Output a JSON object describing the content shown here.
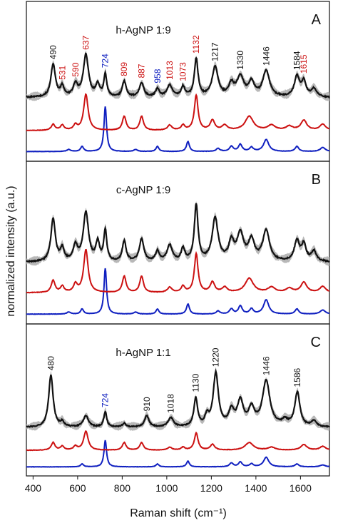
{
  "chart_data": {
    "type": "line",
    "ylabel": "normalized intensity (a.u.)",
    "xlabel": "Raman shift (cm⁻¹)",
    "xlim": [
      370,
      1730
    ],
    "x_ticks": [
      400,
      600,
      800,
      1000,
      1200,
      1400,
      1600
    ],
    "x_tick_labels": [
      "400",
      "600",
      "800",
      "1000",
      "1200",
      "1400",
      "1600"
    ],
    "colors": {
      "black": "#111111",
      "red": "#cc1111",
      "blue": "#1020c0",
      "band": "#b8b8b8"
    },
    "panels": [
      {
        "letter": "A",
        "title": "h-AgNP 1:9",
        "annotations": [
          {
            "x": 490,
            "text": "490",
            "color": "#111111"
          },
          {
            "x": 531,
            "text": "531",
            "color": "#cc1111"
          },
          {
            "x": 590,
            "text": "590",
            "color": "#cc1111"
          },
          {
            "x": 637,
            "text": "637",
            "color": "#cc1111"
          },
          {
            "x": 724,
            "text": "724",
            "color": "#1020c0"
          },
          {
            "x": 809,
            "text": "809",
            "color": "#cc1111"
          },
          {
            "x": 887,
            "text": "887",
            "color": "#cc1111"
          },
          {
            "x": 958,
            "text": "958",
            "color": "#1020c0"
          },
          {
            "x": 1013,
            "text": "1013",
            "color": "#cc1111"
          },
          {
            "x": 1073,
            "text": "1073",
            "color": "#cc1111"
          },
          {
            "x": 1132,
            "text": "1132",
            "color": "#cc1111"
          },
          {
            "x": 1217,
            "text": "1217",
            "color": "#111111"
          },
          {
            "x": 1330,
            "text": "1330",
            "color": "#111111"
          },
          {
            "x": 1446,
            "text": "1446",
            "color": "#111111"
          },
          {
            "x": 1584,
            "text": "1584",
            "color": "#111111"
          },
          {
            "x": 1615,
            "text": "1615",
            "color": "#cc1111"
          }
        ],
        "series": [
          {
            "color": "#111111",
            "band": true,
            "baseline": 0.58,
            "slope": 0.0,
            "noise": 0.012,
            "peaks": [
              [
                490,
                0.33,
                12
              ],
              [
                531,
                0.1,
                10
              ],
              [
                590,
                0.12,
                12
              ],
              [
                637,
                0.42,
                14
              ],
              [
                690,
                0.12,
                10
              ],
              [
                724,
                0.22,
                8
              ],
              [
                809,
                0.16,
                10
              ],
              [
                887,
                0.14,
                12
              ],
              [
                958,
                0.08,
                10
              ],
              [
                1013,
                0.12,
                14
              ],
              [
                1073,
                0.1,
                10
              ],
              [
                1132,
                0.38,
                10
              ],
              [
                1217,
                0.3,
                16
              ],
              [
                1290,
                0.12,
                14
              ],
              [
                1330,
                0.2,
                18
              ],
              [
                1380,
                0.14,
                16
              ],
              [
                1446,
                0.26,
                18
              ],
              [
                1584,
                0.2,
                14
              ],
              [
                1615,
                0.15,
                12
              ],
              [
                1660,
                0.08,
                14
              ]
            ]
          },
          {
            "color": "#cc1111",
            "band": false,
            "baseline": 0.25,
            "slope": 0.0,
            "noise": 0.004,
            "peaks": [
              [
                490,
                0.06,
                10
              ],
              [
                531,
                0.05,
                10
              ],
              [
                590,
                0.05,
                10
              ],
              [
                637,
                0.36,
                12
              ],
              [
                809,
                0.14,
                10
              ],
              [
                887,
                0.14,
                10
              ],
              [
                1013,
                0.05,
                12
              ],
              [
                1073,
                0.05,
                10
              ],
              [
                1132,
                0.35,
                10
              ],
              [
                1205,
                0.1,
                12
              ],
              [
                1260,
                0.05,
                14
              ],
              [
                1370,
                0.14,
                22
              ],
              [
                1470,
                0.05,
                20
              ],
              [
                1550,
                0.04,
                18
              ],
              [
                1615,
                0.1,
                16
              ],
              [
                1700,
                0.06,
                16
              ]
            ]
          },
          {
            "color": "#1020c0",
            "band": false,
            "baseline": 0.04,
            "slope": 0.0,
            "noise": 0.003,
            "peaks": [
              [
                560,
                0.02,
                10
              ],
              [
                620,
                0.05,
                8
              ],
              [
                724,
                0.45,
                7
              ],
              [
                860,
                0.02,
                10
              ],
              [
                958,
                0.05,
                8
              ],
              [
                1095,
                0.1,
                8
              ],
              [
                1230,
                0.03,
                10
              ],
              [
                1290,
                0.05,
                10
              ],
              [
                1330,
                0.07,
                10
              ],
              [
                1380,
                0.04,
                10
              ],
              [
                1446,
                0.12,
                14
              ],
              [
                1584,
                0.05,
                10
              ],
              [
                1700,
                0.04,
                14
              ]
            ]
          }
        ]
      },
      {
        "letter": "B",
        "title": "c-AgNP 1:9",
        "annotations": [],
        "series": [
          {
            "color": "#111111",
            "band": true,
            "baseline": 0.55,
            "slope": 0.0,
            "noise": 0.012,
            "peaks": [
              [
                490,
                0.42,
                12
              ],
              [
                531,
                0.12,
                10
              ],
              [
                590,
                0.15,
                12
              ],
              [
                637,
                0.48,
                14
              ],
              [
                690,
                0.18,
                10
              ],
              [
                724,
                0.3,
                8
              ],
              [
                809,
                0.2,
                10
              ],
              [
                887,
                0.22,
                12
              ],
              [
                958,
                0.1,
                10
              ],
              [
                1013,
                0.16,
                14
              ],
              [
                1073,
                0.12,
                10
              ],
              [
                1132,
                0.55,
                10
              ],
              [
                1217,
                0.42,
                16
              ],
              [
                1290,
                0.18,
                14
              ],
              [
                1330,
                0.26,
                18
              ],
              [
                1380,
                0.2,
                16
              ],
              [
                1446,
                0.3,
                18
              ],
              [
                1584,
                0.2,
                14
              ],
              [
                1615,
                0.16,
                12
              ],
              [
                1660,
                0.1,
                14
              ]
            ]
          },
          {
            "color": "#cc1111",
            "band": false,
            "baseline": 0.25,
            "slope": 0.0,
            "noise": 0.004,
            "peaks": [
              [
                490,
                0.12,
                10
              ],
              [
                531,
                0.06,
                10
              ],
              [
                590,
                0.08,
                10
              ],
              [
                637,
                0.42,
                12
              ],
              [
                809,
                0.16,
                10
              ],
              [
                887,
                0.16,
                10
              ],
              [
                1013,
                0.05,
                12
              ],
              [
                1073,
                0.06,
                10
              ],
              [
                1132,
                0.38,
                10
              ],
              [
                1205,
                0.1,
                12
              ],
              [
                1260,
                0.05,
                14
              ],
              [
                1370,
                0.14,
                22
              ],
              [
                1470,
                0.05,
                20
              ],
              [
                1550,
                0.04,
                18
              ],
              [
                1615,
                0.1,
                16
              ],
              [
                1700,
                0.06,
                16
              ]
            ]
          },
          {
            "color": "#1020c0",
            "band": false,
            "baseline": 0.04,
            "slope": 0.0,
            "noise": 0.003,
            "peaks": [
              [
                560,
                0.02,
                10
              ],
              [
                620,
                0.05,
                8
              ],
              [
                724,
                0.45,
                7
              ],
              [
                860,
                0.02,
                10
              ],
              [
                958,
                0.05,
                8
              ],
              [
                1095,
                0.1,
                8
              ],
              [
                1230,
                0.03,
                10
              ],
              [
                1290,
                0.05,
                10
              ],
              [
                1330,
                0.08,
                10
              ],
              [
                1380,
                0.05,
                10
              ],
              [
                1446,
                0.14,
                14
              ],
              [
                1584,
                0.05,
                10
              ],
              [
                1700,
                0.04,
                14
              ]
            ]
          }
        ]
      },
      {
        "letter": "C",
        "title": "h-AgNP 1:1",
        "annotations": [
          {
            "x": 480,
            "text": "480",
            "color": "#111111"
          },
          {
            "x": 724,
            "text": "724",
            "color": "#1020c0"
          },
          {
            "x": 910,
            "text": "910",
            "color": "#111111"
          },
          {
            "x": 1018,
            "text": "1018",
            "color": "#111111"
          },
          {
            "x": 1130,
            "text": "1130",
            "color": "#111111"
          },
          {
            "x": 1220,
            "text": "1220",
            "color": "#111111"
          },
          {
            "x": 1446,
            "text": "1446",
            "color": "#111111"
          },
          {
            "x": 1586,
            "text": "1586",
            "color": "#111111"
          }
        ],
        "series": [
          {
            "color": "#111111",
            "band": true,
            "baseline": 0.45,
            "slope": 0.0,
            "noise": 0.01,
            "peaks": [
              [
                480,
                0.55,
                12
              ],
              [
                531,
                0.05,
                10
              ],
              [
                637,
                0.12,
                14
              ],
              [
                724,
                0.16,
                8
              ],
              [
                809,
                0.04,
                10
              ],
              [
                910,
                0.12,
                12
              ],
              [
                1018,
                0.1,
                14
              ],
              [
                1130,
                0.3,
                10
              ],
              [
                1180,
                0.1,
                10
              ],
              [
                1220,
                0.56,
                14
              ],
              [
                1290,
                0.16,
                14
              ],
              [
                1330,
                0.26,
                16
              ],
              [
                1380,
                0.18,
                16
              ],
              [
                1446,
                0.48,
                20
              ],
              [
                1530,
                0.06,
                16
              ],
              [
                1586,
                0.36,
                14
              ],
              [
                1660,
                0.06,
                14
              ]
            ]
          },
          {
            "color": "#cc1111",
            "band": false,
            "baseline": 0.21,
            "slope": 0.0,
            "noise": 0.004,
            "peaks": [
              [
                490,
                0.08,
                10
              ],
              [
                531,
                0.04,
                10
              ],
              [
                590,
                0.04,
                10
              ],
              [
                637,
                0.2,
                12
              ],
              [
                809,
                0.08,
                10
              ],
              [
                887,
                0.08,
                10
              ],
              [
                1013,
                0.03,
                12
              ],
              [
                1073,
                0.03,
                10
              ],
              [
                1132,
                0.18,
                10
              ],
              [
                1205,
                0.06,
                12
              ],
              [
                1370,
                0.08,
                22
              ],
              [
                1470,
                0.03,
                20
              ],
              [
                1615,
                0.06,
                16
              ],
              [
                1700,
                0.04,
                16
              ]
            ]
          },
          {
            "color": "#1020c0",
            "band": false,
            "baseline": 0.035,
            "slope": 0.0,
            "noise": 0.003,
            "peaks": [
              [
                620,
                0.03,
                8
              ],
              [
                724,
                0.28,
                7
              ],
              [
                958,
                0.03,
                8
              ],
              [
                1095,
                0.06,
                8
              ],
              [
                1290,
                0.04,
                10
              ],
              [
                1330,
                0.05,
                10
              ],
              [
                1380,
                0.03,
                10
              ],
              [
                1446,
                0.1,
                14
              ],
              [
                1584,
                0.03,
                10
              ],
              [
                1700,
                0.02,
                14
              ]
            ]
          }
        ]
      }
    ]
  }
}
